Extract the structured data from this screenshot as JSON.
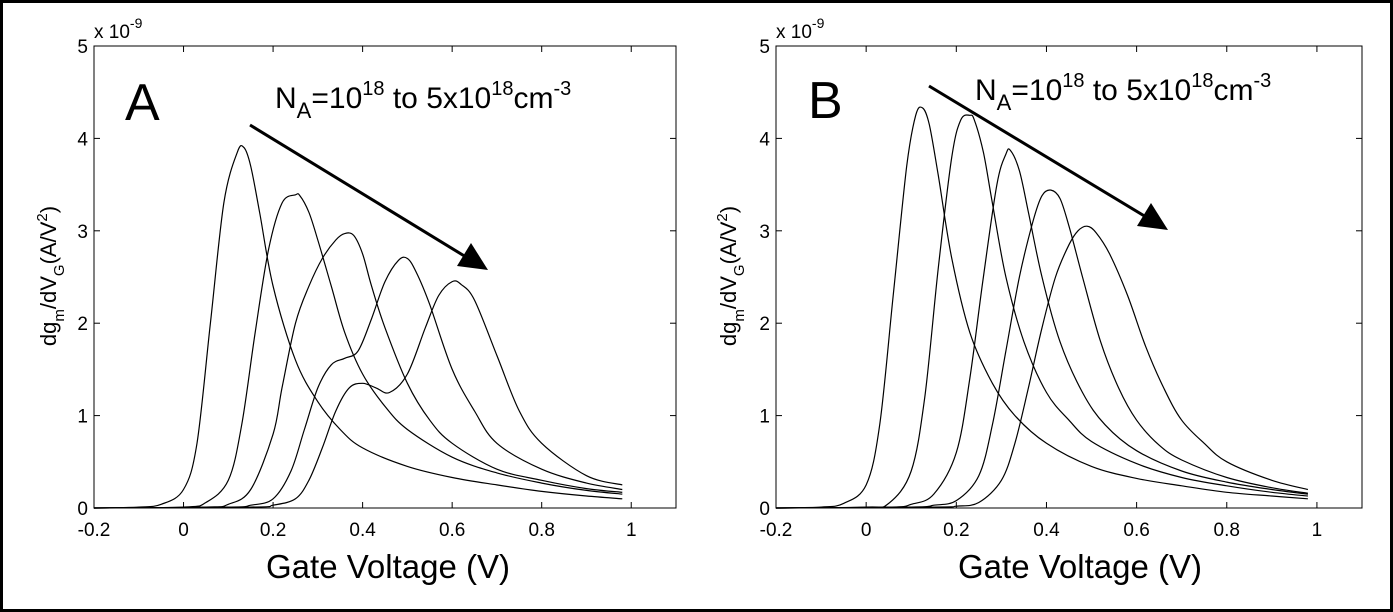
{
  "chart_data": [
    {
      "type": "line",
      "panel_label": "A",
      "annotation": {
        "base": "N",
        "sub": "A",
        "mid": "=10",
        "sup1": "18",
        "mid2": " to 5x10",
        "sup2": "18",
        "tail": "cm",
        "sup3": "-3"
      },
      "xlabel": "Gate Voltage (V)",
      "ylabel": {
        "a": "dg",
        "sub1": "m",
        "b": "/dV",
        "sub2": "G",
        "c": "(A/V",
        "sup": "2",
        "d": ")"
      },
      "y_multiplier": {
        "text": "x 10",
        "exp": "-9"
      },
      "xlim": [
        -0.2,
        1.1
      ],
      "ylim": [
        0,
        5
      ],
      "xticks": [
        "-0.2",
        "0",
        "0.2",
        "0.4",
        "0.6",
        "0.8",
        "1"
      ],
      "yticks": [
        "0",
        "1",
        "2",
        "3",
        "4",
        "5"
      ],
      "series": [
        {
          "x": [
            -0.2,
            -0.1,
            -0.05,
            0,
            0.03,
            0.06,
            0.09,
            0.12,
            0.135,
            0.15,
            0.17,
            0.2,
            0.25,
            0.3,
            0.35,
            0.4,
            0.5,
            0.6,
            0.7,
            0.8,
            0.9,
            0.98
          ],
          "y": [
            0,
            0.01,
            0.04,
            0.2,
            0.7,
            2.0,
            3.3,
            3.85,
            3.9,
            3.7,
            3.2,
            2.4,
            1.6,
            1.15,
            0.85,
            0.65,
            0.45,
            0.33,
            0.25,
            0.18,
            0.13,
            0.1
          ]
        },
        {
          "x": [
            -0.2,
            0,
            0.05,
            0.1,
            0.13,
            0.16,
            0.19,
            0.22,
            0.25,
            0.26,
            0.28,
            0.3,
            0.33,
            0.36,
            0.4,
            0.45,
            0.5,
            0.6,
            0.7,
            0.8,
            0.9,
            0.98
          ],
          "y": [
            0,
            0.01,
            0.06,
            0.3,
            0.9,
            1.9,
            2.8,
            3.3,
            3.39,
            3.38,
            3.2,
            2.9,
            2.4,
            1.9,
            1.45,
            1.1,
            0.85,
            0.55,
            0.38,
            0.27,
            0.19,
            0.15
          ]
        },
        {
          "x": [
            -0.2,
            0.05,
            0.1,
            0.15,
            0.2,
            0.22,
            0.25,
            0.28,
            0.31,
            0.34,
            0.36,
            0.38,
            0.4,
            0.42,
            0.45,
            0.5,
            0.55,
            0.6,
            0.7,
            0.8,
            0.9,
            0.98
          ],
          "y": [
            0,
            0.01,
            0.04,
            0.2,
            0.8,
            1.3,
            2.0,
            2.4,
            2.7,
            2.9,
            2.97,
            2.95,
            2.75,
            2.4,
            1.95,
            1.35,
            0.95,
            0.7,
            0.42,
            0.3,
            0.21,
            0.17
          ]
        },
        {
          "x": [
            -0.2,
            0.1,
            0.15,
            0.2,
            0.24,
            0.27,
            0.3,
            0.33,
            0.36,
            0.39,
            0.42,
            0.45,
            0.48,
            0.5,
            0.52,
            0.55,
            0.6,
            0.65,
            0.7,
            0.8,
            0.9,
            0.98
          ],
          "y": [
            0,
            0.01,
            0.03,
            0.1,
            0.4,
            0.85,
            1.3,
            1.55,
            1.62,
            1.7,
            2.05,
            2.45,
            2.68,
            2.7,
            2.55,
            2.2,
            1.5,
            1.05,
            0.7,
            0.42,
            0.27,
            0.2
          ]
        },
        {
          "x": [
            -0.2,
            0.15,
            0.2,
            0.25,
            0.28,
            0.31,
            0.34,
            0.37,
            0.4,
            0.43,
            0.46,
            0.5,
            0.54,
            0.57,
            0.6,
            0.62,
            0.65,
            0.7,
            0.75,
            0.8,
            0.9,
            0.98
          ],
          "y": [
            0,
            0.01,
            0.03,
            0.1,
            0.3,
            0.65,
            1.05,
            1.3,
            1.35,
            1.3,
            1.25,
            1.45,
            1.95,
            2.3,
            2.45,
            2.42,
            2.25,
            1.65,
            1.05,
            0.7,
            0.35,
            0.25
          ]
        }
      ]
    },
    {
      "type": "line",
      "panel_label": "B",
      "annotation": {
        "base": "N",
        "sub": "A",
        "mid": "=10",
        "sup1": "18",
        "mid2": " to 5x10",
        "sup2": "18",
        "tail": "cm",
        "sup3": "-3"
      },
      "xlabel": "Gate Voltage (V)",
      "ylabel": {
        "a": "dg",
        "sub1": "m",
        "b": "/dV",
        "sub2": "G",
        "c": "(A/V",
        "sup": "2",
        "d": ")"
      },
      "y_multiplier": {
        "text": "x 10",
        "exp": "-9"
      },
      "xlim": [
        -0.2,
        1.1
      ],
      "ylim": [
        0,
        5
      ],
      "xticks": [
        "-0.2",
        "0",
        "0.2",
        "0.4",
        "0.6",
        "0.8",
        "1"
      ],
      "yticks": [
        "0",
        "1",
        "2",
        "3",
        "4",
        "5"
      ],
      "series": [
        {
          "x": [
            -0.2,
            -0.1,
            -0.05,
            0,
            0.03,
            0.06,
            0.09,
            0.11,
            0.125,
            0.14,
            0.16,
            0.19,
            0.23,
            0.28,
            0.33,
            0.4,
            0.5,
            0.6,
            0.7,
            0.8,
            0.9,
            0.98
          ],
          "y": [
            0,
            0.01,
            0.05,
            0.25,
            0.9,
            2.3,
            3.7,
            4.25,
            4.33,
            4.15,
            3.6,
            2.7,
            1.9,
            1.35,
            1.0,
            0.7,
            0.45,
            0.32,
            0.24,
            0.17,
            0.13,
            0.1
          ]
        },
        {
          "x": [
            -0.2,
            0,
            0.05,
            0.1,
            0.13,
            0.16,
            0.19,
            0.21,
            0.23,
            0.24,
            0.26,
            0.28,
            0.31,
            0.35,
            0.4,
            0.45,
            0.5,
            0.6,
            0.7,
            0.8,
            0.9,
            0.98
          ],
          "y": [
            0,
            0.01,
            0.05,
            0.4,
            1.2,
            2.6,
            3.8,
            4.2,
            4.25,
            4.2,
            3.85,
            3.3,
            2.5,
            1.8,
            1.25,
            0.95,
            0.72,
            0.48,
            0.33,
            0.24,
            0.17,
            0.13
          ]
        },
        {
          "x": [
            -0.2,
            0.05,
            0.1,
            0.15,
            0.2,
            0.23,
            0.26,
            0.29,
            0.31,
            0.32,
            0.34,
            0.36,
            0.39,
            0.43,
            0.48,
            0.53,
            0.6,
            0.7,
            0.8,
            0.9,
            0.98
          ],
          "y": [
            0,
            0.01,
            0.04,
            0.15,
            0.6,
            1.4,
            2.5,
            3.5,
            3.83,
            3.87,
            3.65,
            3.2,
            2.5,
            1.8,
            1.25,
            0.9,
            0.62,
            0.4,
            0.28,
            0.2,
            0.15
          ]
        },
        {
          "x": [
            -0.2,
            0.1,
            0.15,
            0.2,
            0.25,
            0.28,
            0.31,
            0.34,
            0.37,
            0.39,
            0.41,
            0.43,
            0.45,
            0.48,
            0.52,
            0.56,
            0.6,
            0.65,
            0.7,
            0.8,
            0.9,
            0.98
          ],
          "y": [
            0,
            0.01,
            0.03,
            0.08,
            0.35,
            0.9,
            1.7,
            2.5,
            3.1,
            3.38,
            3.44,
            3.35,
            3.05,
            2.5,
            1.8,
            1.3,
            0.95,
            0.68,
            0.52,
            0.33,
            0.22,
            0.16
          ]
        },
        {
          "x": [
            -0.2,
            0.15,
            0.2,
            0.25,
            0.3,
            0.33,
            0.36,
            0.39,
            0.42,
            0.45,
            0.47,
            0.49,
            0.51,
            0.54,
            0.58,
            0.62,
            0.66,
            0.7,
            0.75,
            0.8,
            0.9,
            0.98
          ],
          "y": [
            0,
            0.01,
            0.02,
            0.06,
            0.3,
            0.7,
            1.3,
            1.95,
            2.5,
            2.85,
            3.0,
            3.05,
            2.98,
            2.75,
            2.3,
            1.75,
            1.3,
            0.95,
            0.7,
            0.5,
            0.3,
            0.2
          ]
        }
      ]
    }
  ]
}
